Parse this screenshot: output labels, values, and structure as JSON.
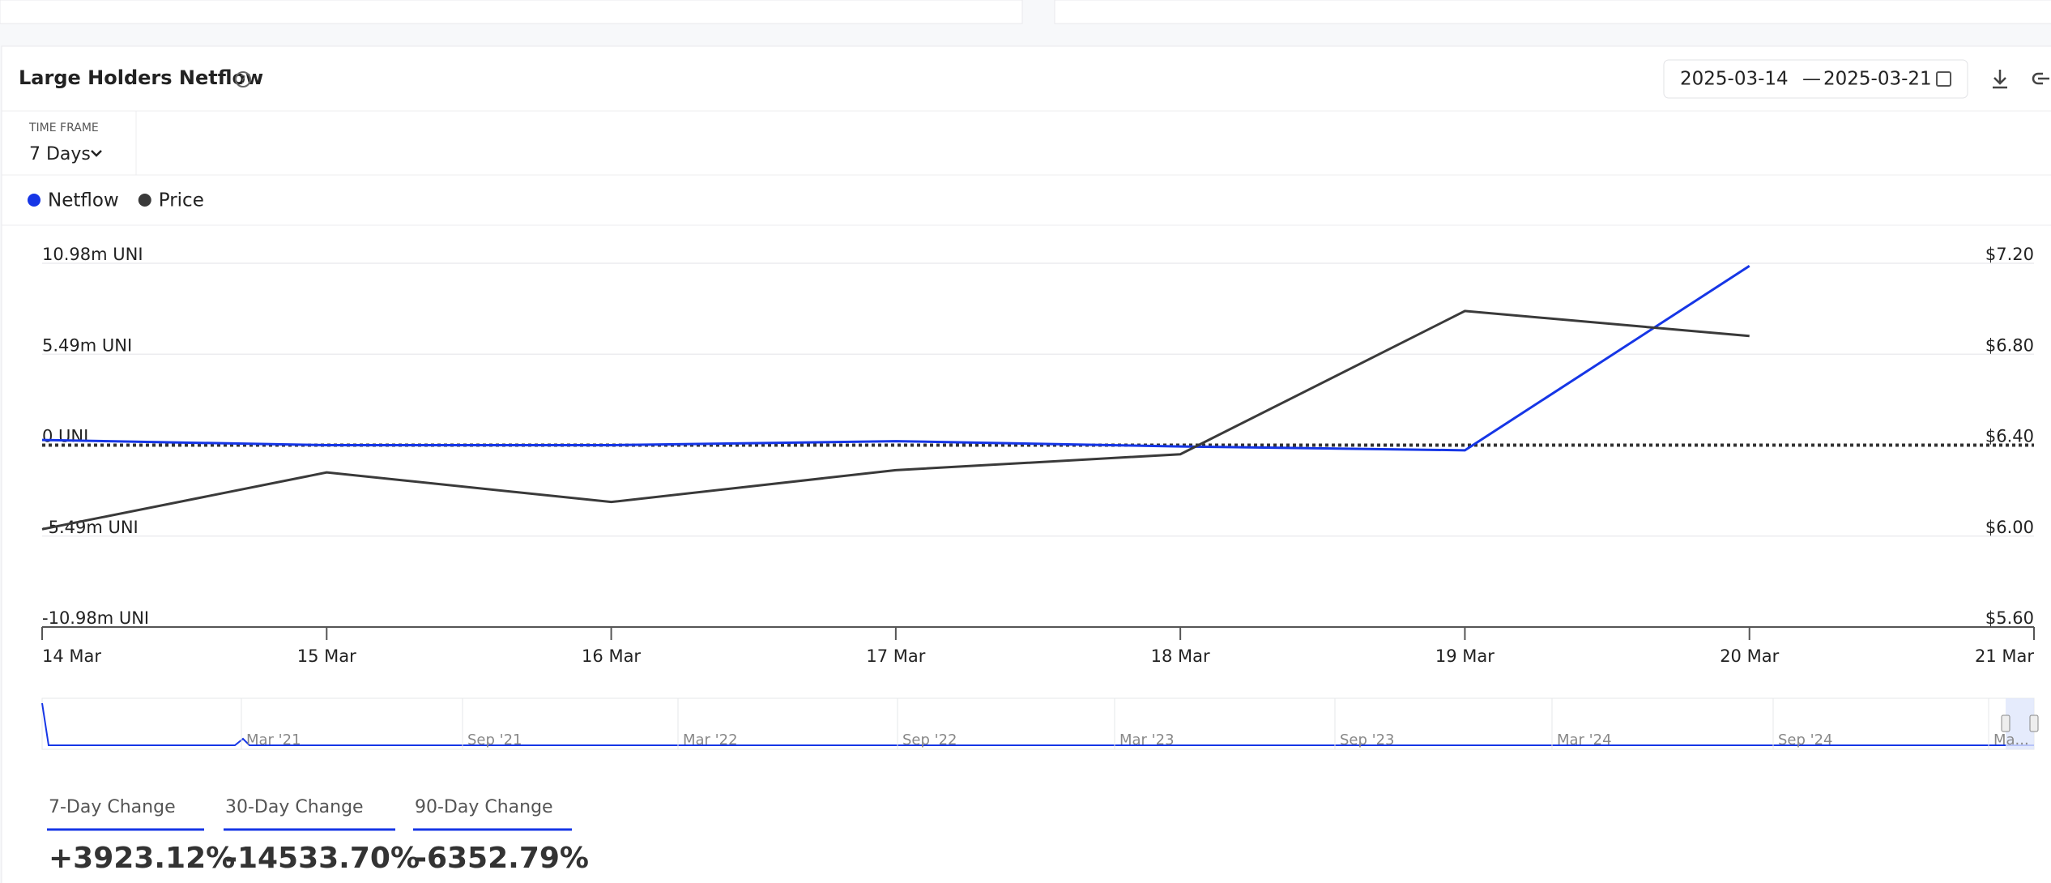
{
  "header": {
    "title": "Large Holders Netflow",
    "date_from": "2025-03-14",
    "date_separator": "—",
    "date_to": "2025-03-21"
  },
  "timeframe": {
    "label": "TIME FRAME",
    "value": "7 Days"
  },
  "chart_data": {
    "type": "line",
    "categories": [
      "14 Mar",
      "15 Mar",
      "16 Mar",
      "17 Mar",
      "18 Mar",
      "19 Mar",
      "20 Mar",
      "21 Mar"
    ],
    "series": [
      {
        "name": "Netflow",
        "color": "#1636e6",
        "values": [
          0.31,
          0,
          0,
          0.24,
          -0.08,
          -0.31,
          10.82,
          null
        ]
      },
      {
        "name": "Price",
        "color": "#3a3a3a",
        "axis": "y2",
        "values": [
          6.03,
          6.28,
          6.15,
          6.29,
          6.36,
          6.99,
          6.88,
          null
        ]
      }
    ],
    "ylim": [
      -10.98,
      10.98
    ],
    "yticks": [
      {
        "value": -10.98,
        "label": "-10.98m UNI"
      },
      {
        "value": -5.49,
        "label": "-5.49m UNI"
      },
      {
        "value": 0,
        "label": "0 UNI"
      },
      {
        "value": 5.49,
        "label": "5.49m UNI"
      },
      {
        "value": 10.98,
        "label": "10.98m UNI"
      }
    ],
    "y2lim": [
      5.6,
      7.2
    ],
    "y2ticks": [
      {
        "value": 5.6,
        "label": "$5.60"
      },
      {
        "value": 6.0,
        "label": "$6.00"
      },
      {
        "value": 6.4,
        "label": "$6.40"
      },
      {
        "value": 6.8,
        "label": "$6.80"
      },
      {
        "value": 7.2,
        "label": "$7.20"
      }
    ],
    "grid": true,
    "legend": "top-left"
  },
  "navigator": {
    "labels": [
      "Mar '21",
      "Sep '21",
      "Mar '22",
      "Sep '22",
      "Mar '23",
      "Sep '23",
      "Mar '24",
      "Sep '24",
      "Ma..."
    ]
  },
  "changes": [
    {
      "label": "7-Day Change",
      "value": "+3923.12%"
    },
    {
      "label": "30-Day Change",
      "value": "-14533.70%"
    },
    {
      "label": "90-Day Change",
      "value": "-6352.79%"
    }
  ]
}
